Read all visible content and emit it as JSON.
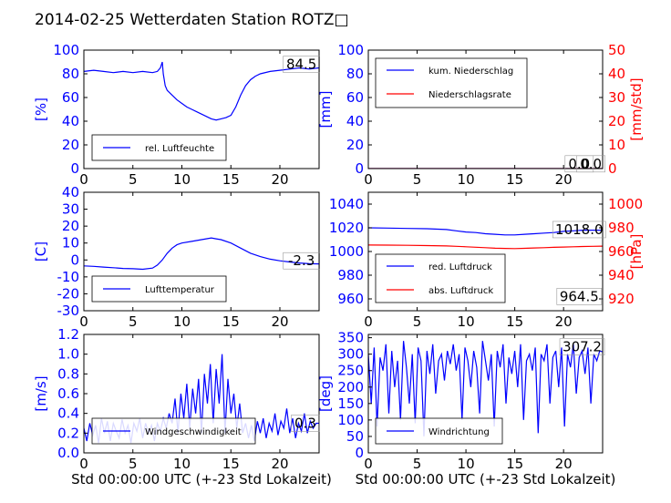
{
  "title": "2014-02-25 Wetterdaten Station ROTZ□",
  "colors": {
    "primary": "#0000ff",
    "secondary": "#ff0000",
    "frame": "#000000"
  },
  "chart_data": [
    {
      "type": "line",
      "id": "humidity",
      "xlabel": "",
      "ylabel": "[%]",
      "xlim": [
        0,
        24
      ],
      "ylim": [
        0,
        100
      ],
      "xticks": [
        0,
        5,
        10,
        15,
        20
      ],
      "yticks": [
        0,
        20,
        40,
        60,
        80,
        100
      ],
      "legend": {
        "position": "bottom-left",
        "entries": [
          "rel. Luftfeuchte"
        ]
      },
      "annotations": [
        {
          "text": "84.5",
          "x": 22.2,
          "y": 88
        }
      ],
      "series": [
        {
          "name": "rel. Luftfeuchte",
          "color": "#0000ff",
          "x": [
            0,
            1,
            2,
            3,
            4,
            5,
            6,
            7,
            7.5,
            7.8,
            8.0,
            8.1,
            8.3,
            8.5,
            9,
            9.5,
            10,
            10.5,
            11,
            11.5,
            12,
            12.5,
            13,
            13.5,
            14,
            14.5,
            15,
            15.5,
            16,
            16.5,
            17,
            17.5,
            18,
            19,
            20,
            21,
            22,
            23,
            24
          ],
          "y": [
            82,
            83,
            82,
            81,
            82,
            81,
            82,
            81,
            82,
            85,
            90,
            80,
            70,
            66,
            62,
            58,
            55,
            52,
            50,
            48,
            46,
            44,
            42,
            41,
            42,
            43,
            45,
            52,
            62,
            70,
            75,
            78,
            80,
            82,
            83,
            84,
            85,
            84,
            85
          ]
        }
      ]
    },
    {
      "type": "line",
      "id": "precipitation",
      "xlabel": "",
      "ylabel": "[mm]",
      "ylabel_right": "[mm/std]",
      "xlim": [
        0,
        24
      ],
      "ylim": [
        0,
        100
      ],
      "ylim_right": [
        0,
        50
      ],
      "xticks": [
        0,
        5,
        10,
        15,
        20
      ],
      "yticks": [
        0,
        20,
        40,
        60,
        80,
        100
      ],
      "yticks_right": [
        0,
        10,
        20,
        30,
        40,
        50
      ],
      "legend": {
        "position": "top-left",
        "entries": [
          "kum. Niederschlag",
          "Niederschlagsrate"
        ]
      },
      "annotations": [
        {
          "text": "0.0",
          "x": 22.8,
          "y": 4
        },
        {
          "text": "0.0",
          "x": 21.6,
          "y": 4
        }
      ],
      "series": [
        {
          "name": "kum. Niederschlag",
          "color": "#0000ff",
          "axis": "left",
          "x": [
            0,
            24
          ],
          "y": [
            0,
            0
          ]
        },
        {
          "name": "Niederschlagsrate",
          "color": "#ff0000",
          "axis": "right",
          "x": [
            0,
            24
          ],
          "y": [
            0,
            0
          ]
        }
      ]
    },
    {
      "type": "line",
      "id": "temperature",
      "xlabel": "",
      "ylabel": "[C]",
      "xlim": [
        0,
        24
      ],
      "ylim": [
        -30,
        40
      ],
      "xticks": [
        0,
        5,
        10,
        15,
        20
      ],
      "yticks": [
        -30,
        -20,
        -10,
        0,
        10,
        20,
        30,
        40
      ],
      "legend": {
        "position": "bottom-left",
        "entries": [
          "Lufttemperatur"
        ]
      },
      "annotations": [
        {
          "text": "-2.3",
          "x": 22.2,
          "y": -0.5
        }
      ],
      "series": [
        {
          "name": "Lufttemperatur",
          "color": "#0000ff",
          "x": [
            0,
            1,
            2,
            3,
            4,
            5,
            6,
            7,
            7.5,
            8,
            8.5,
            9,
            9.5,
            10,
            11,
            12,
            13,
            13.5,
            14,
            15,
            16,
            17,
            18,
            19,
            20,
            21,
            22,
            23,
            24
          ],
          "y": [
            -3.5,
            -3.8,
            -4.2,
            -4.6,
            -5,
            -5.2,
            -5.5,
            -4.8,
            -3,
            0,
            4,
            7,
            9,
            10,
            11,
            12,
            13,
            12.5,
            12,
            10,
            7,
            4,
            2,
            0.5,
            -0.5,
            -1.2,
            -1.8,
            -2.2,
            -2.3
          ]
        }
      ]
    },
    {
      "type": "line",
      "id": "pressure",
      "xlabel": "",
      "ylabel": "",
      "ylabel_right": "[hPa]",
      "xlim": [
        0,
        24
      ],
      "ylim": [
        950,
        1050
      ],
      "ylim_right": [
        910,
        1010
      ],
      "xticks": [
        0,
        5,
        10,
        15,
        20
      ],
      "yticks": [
        960,
        980,
        1000,
        1020,
        1040
      ],
      "yticks_right": [
        920,
        940,
        960,
        980,
        1000
      ],
      "legend": {
        "position": "bottom-left",
        "entries": [
          "red. Luftdruck",
          "abs. Luftdruck"
        ]
      },
      "annotations": [
        {
          "text": "1018.0",
          "x": 21.6,
          "y": 1018.5
        },
        {
          "text": "964.5",
          "x": 21.6,
          "y": 962
        }
      ],
      "series": [
        {
          "name": "red. Luftdruck",
          "color": "#0000ff",
          "axis": "left",
          "x": [
            0,
            2,
            4,
            6,
            8,
            9,
            10,
            11,
            12,
            13,
            14,
            15,
            16,
            17,
            18,
            19,
            20,
            21,
            22,
            23,
            24
          ],
          "y": [
            1020,
            1019.8,
            1019.5,
            1019.2,
            1018.5,
            1017.5,
            1016.5,
            1016,
            1015,
            1014.5,
            1014,
            1014,
            1014.5,
            1015,
            1015.5,
            1016,
            1017,
            1017.5,
            1018,
            1018,
            1018
          ]
        },
        {
          "name": "abs. Luftdruck",
          "color": "#ff0000",
          "axis": "right",
          "x": [
            0,
            2,
            4,
            6,
            8,
            9,
            10,
            11,
            12,
            13,
            14,
            15,
            16,
            17,
            18,
            19,
            20,
            21,
            22,
            23,
            24
          ],
          "y": [
            965.5,
            965.4,
            965.2,
            965,
            964.7,
            964.4,
            964,
            963.6,
            963.2,
            962.8,
            962.6,
            962.5,
            962.7,
            963,
            963.2,
            963.5,
            963.8,
            964,
            964.2,
            964.4,
            964.5
          ]
        }
      ]
    },
    {
      "type": "line",
      "id": "windspeed",
      "xlabel": "Std 00:00:00 UTC (+-23 Std Lokalzeit)",
      "ylabel": "[m/s]",
      "xlim": [
        0,
        24
      ],
      "ylim": [
        0,
        1.2
      ],
      "xticks": [
        0,
        5,
        10,
        15,
        20
      ],
      "yticks": [
        0.0,
        0.2,
        0.4,
        0.6,
        0.8,
        1.0,
        1.2
      ],
      "legend": {
        "position": "bottom-left",
        "entries": [
          "Windgeschwindigkeit"
        ]
      },
      "annotations": [
        {
          "text": "0.3",
          "x": 22.6,
          "y": 0.3
        }
      ],
      "series": [
        {
          "name": "Windgeschwindigkeit",
          "color": "#0000ff",
          "x": [
            0,
            0.3,
            0.6,
            0.9,
            1.2,
            1.5,
            1.8,
            2.1,
            2.4,
            2.7,
            3,
            3.3,
            3.6,
            3.9,
            4.2,
            4.5,
            4.8,
            5.1,
            5.4,
            5.7,
            6,
            6.3,
            6.6,
            6.9,
            7.2,
            7.5,
            7.8,
            8.1,
            8.4,
            8.7,
            9,
            9.3,
            9.6,
            9.9,
            10.2,
            10.5,
            10.8,
            11.1,
            11.4,
            11.7,
            12,
            12.3,
            12.6,
            12.9,
            13.2,
            13.5,
            13.8,
            14.1,
            14.4,
            14.7,
            15,
            15.3,
            15.6,
            15.9,
            16.2,
            16.5,
            16.8,
            17.1,
            17.4,
            17.7,
            18,
            18.3,
            18.6,
            18.9,
            19.2,
            19.5,
            19.8,
            20.1,
            20.4,
            20.7,
            21,
            21.3,
            21.6,
            21.9,
            22.2,
            22.5,
            22.8,
            23.1,
            23.4,
            23.7,
            24
          ],
          "y": [
            0.25,
            0.12,
            0.3,
            0.18,
            0.28,
            0.1,
            0.35,
            0.2,
            0.32,
            0.12,
            0.3,
            0.22,
            0.15,
            0.34,
            0.2,
            0.28,
            0.1,
            0.3,
            0.22,
            0.35,
            0.15,
            0.3,
            0.2,
            0.28,
            0.12,
            0.3,
            0.22,
            0.35,
            0.25,
            0.4,
            0.3,
            0.55,
            0.2,
            0.6,
            0.35,
            0.7,
            0.25,
            0.65,
            0.4,
            0.75,
            0.2,
            0.8,
            0.5,
            0.9,
            0.3,
            0.85,
            0.5,
            1.0,
            0.2,
            0.75,
            0.4,
            0.6,
            0.25,
            0.5,
            0.2,
            0.3,
            0.15,
            0.28,
            0.12,
            0.32,
            0.2,
            0.35,
            0.15,
            0.3,
            0.22,
            0.4,
            0.18,
            0.32,
            0.25,
            0.45,
            0.2,
            0.35,
            0.15,
            0.3,
            0.22,
            0.4,
            0.2,
            0.32,
            0.25,
            0.3,
            0.3
          ]
        }
      ]
    },
    {
      "type": "line",
      "id": "winddirection",
      "xlabel": "Std 00:00:00 UTC (+-23 Std Lokalzeit)",
      "ylabel": "[deg]",
      "xlim": [
        0,
        24
      ],
      "ylim": [
        0,
        360
      ],
      "xticks": [
        0,
        5,
        10,
        15,
        20
      ],
      "yticks": [
        0,
        50,
        100,
        150,
        200,
        250,
        300,
        350
      ],
      "legend": {
        "position": "bottom-left",
        "entries": [
          "Windrichtung"
        ]
      },
      "annotations": [
        {
          "text": "307.2",
          "x": 21.9,
          "y": 322
        }
      ],
      "series": [
        {
          "name": "Windrichtung",
          "color": "#0000ff",
          "x": [
            0,
            0.3,
            0.6,
            0.9,
            1.2,
            1.5,
            1.8,
            2.1,
            2.4,
            2.7,
            3,
            3.3,
            3.6,
            3.9,
            4.2,
            4.5,
            4.8,
            5.1,
            5.4,
            5.7,
            6,
            6.3,
            6.6,
            6.9,
            7.2,
            7.5,
            7.8,
            8.1,
            8.4,
            8.7,
            9,
            9.3,
            9.6,
            9.9,
            10.2,
            10.5,
            10.8,
            11.1,
            11.4,
            11.7,
            12,
            12.3,
            12.6,
            12.9,
            13.2,
            13.5,
            13.8,
            14.1,
            14.4,
            14.7,
            15,
            15.3,
            15.6,
            15.9,
            16.2,
            16.5,
            16.8,
            17.1,
            17.4,
            17.7,
            18,
            18.3,
            18.6,
            18.9,
            19.2,
            19.5,
            19.8,
            20.1,
            20.4,
            20.7,
            21,
            21.3,
            21.6,
            21.9,
            22.2,
            22.5,
            22.8,
            23.1,
            23.4,
            23.7,
            24
          ],
          "y": [
            300,
            150,
            320,
            80,
            290,
            250,
            330,
            120,
            310,
            200,
            280,
            100,
            340,
            260,
            150,
            300,
            90,
            320,
            280,
            50,
            310,
            240,
            330,
            180,
            280,
            300,
            220,
            310,
            270,
            330,
            250,
            300,
            100,
            320,
            280,
            200,
            310,
            260,
            120,
            340,
            280,
            220,
            300,
            80,
            310,
            260,
            330,
            150,
            290,
            240,
            310,
            200,
            330,
            100,
            280,
            300,
            250,
            320,
            60,
            300,
            280,
            330,
            150,
            290,
            310,
            200,
            320,
            80,
            300,
            260,
            330,
            180,
            290,
            310,
            240,
            320,
            150,
            300,
            280,
            310,
            307
          ]
        }
      ]
    }
  ]
}
